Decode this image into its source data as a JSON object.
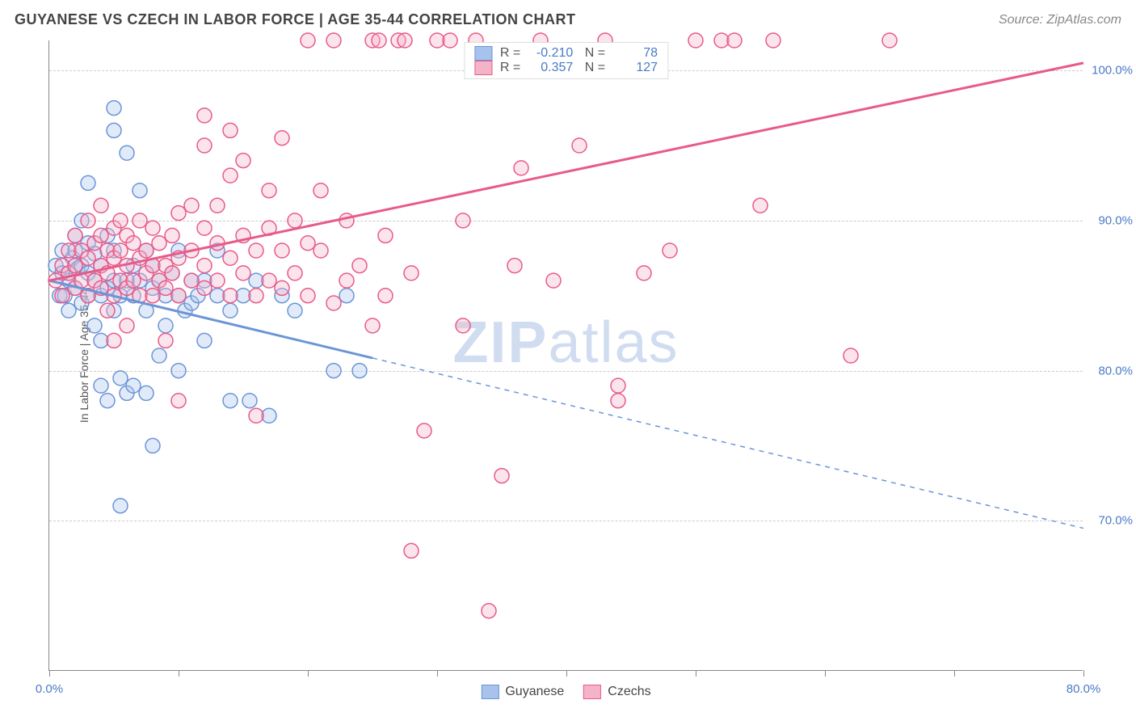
{
  "header": {
    "title": "GUYANESE VS CZECH IN LABOR FORCE | AGE 35-44 CORRELATION CHART",
    "source": "Source: ZipAtlas.com"
  },
  "watermark": {
    "bold": "ZIP",
    "light": "atlas"
  },
  "chart": {
    "type": "scatter",
    "ylabel": "In Labor Force | Age 35-44",
    "xlim": [
      0,
      80
    ],
    "ylim": [
      60,
      102
    ],
    "xtick_positions": [
      0,
      10,
      20,
      30,
      40,
      50,
      60,
      70,
      80
    ],
    "xtick_labels": {
      "0": "0.0%",
      "80": "80.0%"
    },
    "ytick_positions": [
      70,
      80,
      90,
      100
    ],
    "ytick_labels": {
      "70": "70.0%",
      "80": "80.0%",
      "90": "90.0%",
      "100": "100.0%"
    },
    "grid_color": "#cccccc",
    "axis_color": "#888888",
    "background_color": "#ffffff",
    "label_color": "#4a7ac7",
    "point_radius": 9,
    "series": [
      {
        "name": "Guyanese",
        "color_stroke": "#6b95d8",
        "color_fill": "#a8c3eb",
        "R": "-0.210",
        "N": "78",
        "trend": {
          "x1": 0,
          "y1": 86,
          "x2": 25,
          "y2": 82.5,
          "x2_ext": 80,
          "y2_ext": 69.5
        },
        "solid_until_x": 25,
        "points": [
          [
            0.5,
            87
          ],
          [
            0.8,
            85
          ],
          [
            1,
            86.5
          ],
          [
            1,
            88
          ],
          [
            1.2,
            85
          ],
          [
            1.5,
            86
          ],
          [
            1.5,
            84
          ],
          [
            1.8,
            87.5
          ],
          [
            2,
            85.5
          ],
          [
            2,
            88
          ],
          [
            2,
            89
          ],
          [
            2.2,
            86.8
          ],
          [
            2.5,
            84.5
          ],
          [
            2.5,
            87
          ],
          [
            2.5,
            90
          ],
          [
            3,
            85
          ],
          [
            3,
            86.5
          ],
          [
            3,
            88.5
          ],
          [
            3,
            92.5
          ],
          [
            3.5,
            83
          ],
          [
            3.5,
            87.8
          ],
          [
            3.5,
            86
          ],
          [
            4,
            85
          ],
          [
            4,
            87
          ],
          [
            4,
            82
          ],
          [
            4,
            79
          ],
          [
            4.5,
            78
          ],
          [
            4.5,
            85.5
          ],
          [
            4.5,
            89
          ],
          [
            5,
            86
          ],
          [
            5,
            84
          ],
          [
            5,
            88
          ],
          [
            5,
            96
          ],
          [
            5,
            97.5
          ],
          [
            5.5,
            85
          ],
          [
            5.5,
            79.5
          ],
          [
            5.5,
            71
          ],
          [
            6,
            86
          ],
          [
            6,
            94.5
          ],
          [
            6,
            78.5
          ],
          [
            6.5,
            85
          ],
          [
            6.5,
            87
          ],
          [
            6.5,
            79
          ],
          [
            7,
            86
          ],
          [
            7,
            92
          ],
          [
            7.5,
            84
          ],
          [
            7.5,
            88
          ],
          [
            7.5,
            78.5
          ],
          [
            8,
            85.5
          ],
          [
            8,
            87
          ],
          [
            8,
            75
          ],
          [
            8.5,
            86
          ],
          [
            8.5,
            81
          ],
          [
            9,
            85
          ],
          [
            9,
            83
          ],
          [
            9.5,
            86.5
          ],
          [
            10,
            85
          ],
          [
            10,
            88
          ],
          [
            10,
            80
          ],
          [
            10.5,
            84
          ],
          [
            11,
            86
          ],
          [
            11,
            84.5
          ],
          [
            11.5,
            85
          ],
          [
            12,
            86
          ],
          [
            12,
            82
          ],
          [
            13,
            85
          ],
          [
            13,
            88
          ],
          [
            14,
            78
          ],
          [
            14,
            84
          ],
          [
            15,
            85
          ],
          [
            15.5,
            78
          ],
          [
            16,
            86
          ],
          [
            17,
            77
          ],
          [
            18,
            85
          ],
          [
            19,
            84
          ],
          [
            22,
            80
          ],
          [
            23,
            85
          ],
          [
            24,
            80
          ]
        ]
      },
      {
        "name": "Czechs",
        "color_stroke": "#e85a8a",
        "color_fill": "#f5b3c8",
        "R": "0.357",
        "N": "127",
        "trend": {
          "x1": 0,
          "y1": 86,
          "x2": 80,
          "y2": 100.5
        },
        "solid_until_x": 80,
        "points": [
          [
            0.5,
            86
          ],
          [
            1,
            85
          ],
          [
            1,
            87
          ],
          [
            1.5,
            86.5
          ],
          [
            1.5,
            88
          ],
          [
            2,
            85.5
          ],
          [
            2,
            87
          ],
          [
            2,
            89
          ],
          [
            2.5,
            86
          ],
          [
            2.5,
            88
          ],
          [
            3,
            85
          ],
          [
            3,
            87.5
          ],
          [
            3,
            90
          ],
          [
            3.5,
            86
          ],
          [
            3.5,
            88.5
          ],
          [
            4,
            85.5
          ],
          [
            4,
            87
          ],
          [
            4,
            89
          ],
          [
            4,
            91
          ],
          [
            4.5,
            86.5
          ],
          [
            4.5,
            88
          ],
          [
            4.5,
            84
          ],
          [
            5,
            85
          ],
          [
            5,
            87.5
          ],
          [
            5,
            89.5
          ],
          [
            5,
            82
          ],
          [
            5.5,
            86
          ],
          [
            5.5,
            88
          ],
          [
            5.5,
            90
          ],
          [
            6,
            85.5
          ],
          [
            6,
            87
          ],
          [
            6,
            89
          ],
          [
            6,
            83
          ],
          [
            6.5,
            86
          ],
          [
            6.5,
            88.5
          ],
          [
            7,
            85
          ],
          [
            7,
            87.5
          ],
          [
            7,
            90
          ],
          [
            7.5,
            86.5
          ],
          [
            7.5,
            88
          ],
          [
            8,
            85
          ],
          [
            8,
            87
          ],
          [
            8,
            89.5
          ],
          [
            8.5,
            86
          ],
          [
            8.5,
            88.5
          ],
          [
            9,
            82
          ],
          [
            9,
            85.5
          ],
          [
            9,
            87
          ],
          [
            9.5,
            86.5
          ],
          [
            9.5,
            89
          ],
          [
            10,
            78
          ],
          [
            10,
            85
          ],
          [
            10,
            87.5
          ],
          [
            10,
            90.5
          ],
          [
            11,
            86
          ],
          [
            11,
            88
          ],
          [
            11,
            91
          ],
          [
            12,
            85.5
          ],
          [
            12,
            87
          ],
          [
            12,
            89.5
          ],
          [
            12,
            95
          ],
          [
            12,
            97
          ],
          [
            13,
            86
          ],
          [
            13,
            88.5
          ],
          [
            13,
            91
          ],
          [
            14,
            85
          ],
          [
            14,
            87.5
          ],
          [
            14,
            93
          ],
          [
            14,
            96
          ],
          [
            15,
            86.5
          ],
          [
            15,
            89
          ],
          [
            15,
            94
          ],
          [
            16,
            85
          ],
          [
            16,
            88
          ],
          [
            16,
            77
          ],
          [
            17,
            86
          ],
          [
            17,
            89.5
          ],
          [
            17,
            92
          ],
          [
            18,
            85.5
          ],
          [
            18,
            88
          ],
          [
            18,
            95.5
          ],
          [
            19,
            86.5
          ],
          [
            19,
            90
          ],
          [
            20,
            85
          ],
          [
            20,
            88.5
          ],
          [
            20,
            102
          ],
          [
            21,
            92
          ],
          [
            21,
            88
          ],
          [
            22,
            102
          ],
          [
            22,
            84.5
          ],
          [
            23,
            86
          ],
          [
            23,
            90
          ],
          [
            24,
            87
          ],
          [
            25,
            83
          ],
          [
            25,
            102
          ],
          [
            25.5,
            102
          ],
          [
            26,
            85
          ],
          [
            26,
            89
          ],
          [
            27,
            102
          ],
          [
            27.5,
            102
          ],
          [
            28,
            86.5
          ],
          [
            28,
            68
          ],
          [
            29,
            76
          ],
          [
            30,
            102
          ],
          [
            31,
            102
          ],
          [
            32,
            83
          ],
          [
            32,
            90
          ],
          [
            33,
            102
          ],
          [
            34,
            64
          ],
          [
            35,
            73
          ],
          [
            36,
            87
          ],
          [
            36.5,
            93.5
          ],
          [
            38,
            102
          ],
          [
            39,
            86
          ],
          [
            41,
            95
          ],
          [
            43,
            102
          ],
          [
            44,
            78
          ],
          [
            44,
            79
          ],
          [
            46,
            86.5
          ],
          [
            48,
            88
          ],
          [
            50,
            102
          ],
          [
            52,
            102
          ],
          [
            53,
            102
          ],
          [
            55,
            91
          ],
          [
            56,
            102
          ],
          [
            62,
            81
          ],
          [
            65,
            102
          ]
        ]
      }
    ]
  },
  "legend_bottom": [
    {
      "label": "Guyanese",
      "swatch_fill": "#a8c3eb",
      "swatch_stroke": "#6b95d8"
    },
    {
      "label": "Czechs",
      "swatch_fill": "#f5b3c8",
      "swatch_stroke": "#e85a8a"
    }
  ]
}
